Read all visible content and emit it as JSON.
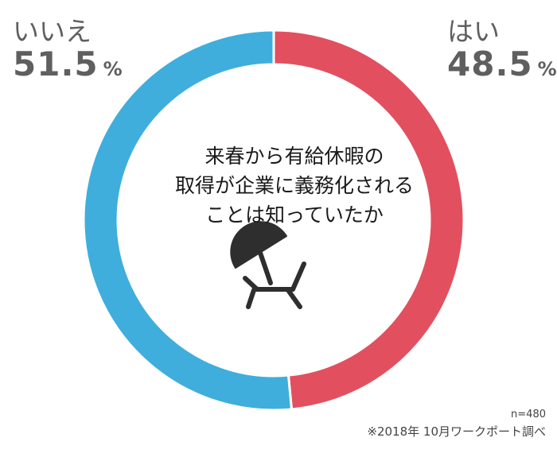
{
  "chart_data": {
    "type": "pie",
    "variant": "donut",
    "slices": [
      {
        "label": "はい",
        "value": 48.5,
        "color": "#e2505f"
      },
      {
        "label": "いいえ",
        "value": 51.5,
        "color": "#3faedc"
      }
    ],
    "unit": "%",
    "start_angle": "12 o'clock",
    "direction": "clockwise",
    "center_title": [
      "来春から有給休暇の",
      "取得が企業に義務化される",
      "ことは知っていたか"
    ],
    "center_icon": "beach-umbrella-lounger-icon",
    "sample_note": "n=480",
    "source_note": "※2018年 10月ワークポート調べ"
  },
  "colors": {
    "yes": "#e2505f",
    "no": "#3faedc",
    "label_text": "#5f5f5f",
    "icon": "#2e2e2e"
  }
}
